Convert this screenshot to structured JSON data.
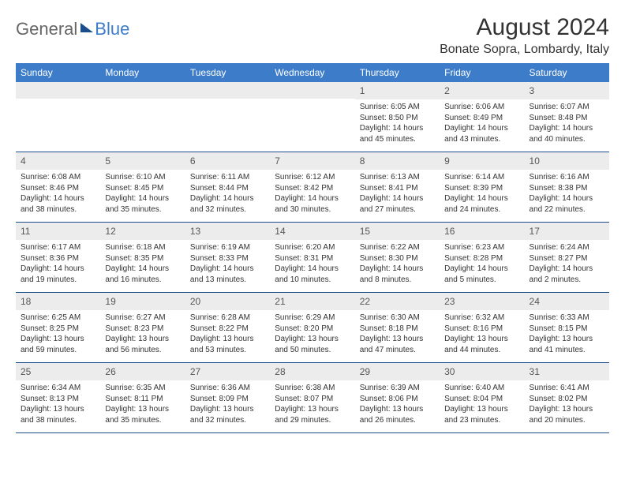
{
  "brand": {
    "part1": "General",
    "part2": "Blue"
  },
  "title": "August 2024",
  "location": "Bonate Sopra, Lombardy, Italy",
  "colors": {
    "header_bg": "#3d7cc9",
    "header_text": "#ffffff",
    "daynum_bg": "#ececec",
    "border": "#1a4e8a",
    "logo_blue": "#3d7cc9"
  },
  "daysOfWeek": [
    "Sunday",
    "Monday",
    "Tuesday",
    "Wednesday",
    "Thursday",
    "Friday",
    "Saturday"
  ],
  "weeks": [
    [
      {
        "num": "",
        "sunrise": "",
        "sunset": "",
        "daylight": ""
      },
      {
        "num": "",
        "sunrise": "",
        "sunset": "",
        "daylight": ""
      },
      {
        "num": "",
        "sunrise": "",
        "sunset": "",
        "daylight": ""
      },
      {
        "num": "",
        "sunrise": "",
        "sunset": "",
        "daylight": ""
      },
      {
        "num": "1",
        "sunrise": "Sunrise: 6:05 AM",
        "sunset": "Sunset: 8:50 PM",
        "daylight": "Daylight: 14 hours and 45 minutes."
      },
      {
        "num": "2",
        "sunrise": "Sunrise: 6:06 AM",
        "sunset": "Sunset: 8:49 PM",
        "daylight": "Daylight: 14 hours and 43 minutes."
      },
      {
        "num": "3",
        "sunrise": "Sunrise: 6:07 AM",
        "sunset": "Sunset: 8:48 PM",
        "daylight": "Daylight: 14 hours and 40 minutes."
      }
    ],
    [
      {
        "num": "4",
        "sunrise": "Sunrise: 6:08 AM",
        "sunset": "Sunset: 8:46 PM",
        "daylight": "Daylight: 14 hours and 38 minutes."
      },
      {
        "num": "5",
        "sunrise": "Sunrise: 6:10 AM",
        "sunset": "Sunset: 8:45 PM",
        "daylight": "Daylight: 14 hours and 35 minutes."
      },
      {
        "num": "6",
        "sunrise": "Sunrise: 6:11 AM",
        "sunset": "Sunset: 8:44 PM",
        "daylight": "Daylight: 14 hours and 32 minutes."
      },
      {
        "num": "7",
        "sunrise": "Sunrise: 6:12 AM",
        "sunset": "Sunset: 8:42 PM",
        "daylight": "Daylight: 14 hours and 30 minutes."
      },
      {
        "num": "8",
        "sunrise": "Sunrise: 6:13 AM",
        "sunset": "Sunset: 8:41 PM",
        "daylight": "Daylight: 14 hours and 27 minutes."
      },
      {
        "num": "9",
        "sunrise": "Sunrise: 6:14 AM",
        "sunset": "Sunset: 8:39 PM",
        "daylight": "Daylight: 14 hours and 24 minutes."
      },
      {
        "num": "10",
        "sunrise": "Sunrise: 6:16 AM",
        "sunset": "Sunset: 8:38 PM",
        "daylight": "Daylight: 14 hours and 22 minutes."
      }
    ],
    [
      {
        "num": "11",
        "sunrise": "Sunrise: 6:17 AM",
        "sunset": "Sunset: 8:36 PM",
        "daylight": "Daylight: 14 hours and 19 minutes."
      },
      {
        "num": "12",
        "sunrise": "Sunrise: 6:18 AM",
        "sunset": "Sunset: 8:35 PM",
        "daylight": "Daylight: 14 hours and 16 minutes."
      },
      {
        "num": "13",
        "sunrise": "Sunrise: 6:19 AM",
        "sunset": "Sunset: 8:33 PM",
        "daylight": "Daylight: 14 hours and 13 minutes."
      },
      {
        "num": "14",
        "sunrise": "Sunrise: 6:20 AM",
        "sunset": "Sunset: 8:31 PM",
        "daylight": "Daylight: 14 hours and 10 minutes."
      },
      {
        "num": "15",
        "sunrise": "Sunrise: 6:22 AM",
        "sunset": "Sunset: 8:30 PM",
        "daylight": "Daylight: 14 hours and 8 minutes."
      },
      {
        "num": "16",
        "sunrise": "Sunrise: 6:23 AM",
        "sunset": "Sunset: 8:28 PM",
        "daylight": "Daylight: 14 hours and 5 minutes."
      },
      {
        "num": "17",
        "sunrise": "Sunrise: 6:24 AM",
        "sunset": "Sunset: 8:27 PM",
        "daylight": "Daylight: 14 hours and 2 minutes."
      }
    ],
    [
      {
        "num": "18",
        "sunrise": "Sunrise: 6:25 AM",
        "sunset": "Sunset: 8:25 PM",
        "daylight": "Daylight: 13 hours and 59 minutes."
      },
      {
        "num": "19",
        "sunrise": "Sunrise: 6:27 AM",
        "sunset": "Sunset: 8:23 PM",
        "daylight": "Daylight: 13 hours and 56 minutes."
      },
      {
        "num": "20",
        "sunrise": "Sunrise: 6:28 AM",
        "sunset": "Sunset: 8:22 PM",
        "daylight": "Daylight: 13 hours and 53 minutes."
      },
      {
        "num": "21",
        "sunrise": "Sunrise: 6:29 AM",
        "sunset": "Sunset: 8:20 PM",
        "daylight": "Daylight: 13 hours and 50 minutes."
      },
      {
        "num": "22",
        "sunrise": "Sunrise: 6:30 AM",
        "sunset": "Sunset: 8:18 PM",
        "daylight": "Daylight: 13 hours and 47 minutes."
      },
      {
        "num": "23",
        "sunrise": "Sunrise: 6:32 AM",
        "sunset": "Sunset: 8:16 PM",
        "daylight": "Daylight: 13 hours and 44 minutes."
      },
      {
        "num": "24",
        "sunrise": "Sunrise: 6:33 AM",
        "sunset": "Sunset: 8:15 PM",
        "daylight": "Daylight: 13 hours and 41 minutes."
      }
    ],
    [
      {
        "num": "25",
        "sunrise": "Sunrise: 6:34 AM",
        "sunset": "Sunset: 8:13 PM",
        "daylight": "Daylight: 13 hours and 38 minutes."
      },
      {
        "num": "26",
        "sunrise": "Sunrise: 6:35 AM",
        "sunset": "Sunset: 8:11 PM",
        "daylight": "Daylight: 13 hours and 35 minutes."
      },
      {
        "num": "27",
        "sunrise": "Sunrise: 6:36 AM",
        "sunset": "Sunset: 8:09 PM",
        "daylight": "Daylight: 13 hours and 32 minutes."
      },
      {
        "num": "28",
        "sunrise": "Sunrise: 6:38 AM",
        "sunset": "Sunset: 8:07 PM",
        "daylight": "Daylight: 13 hours and 29 minutes."
      },
      {
        "num": "29",
        "sunrise": "Sunrise: 6:39 AM",
        "sunset": "Sunset: 8:06 PM",
        "daylight": "Daylight: 13 hours and 26 minutes."
      },
      {
        "num": "30",
        "sunrise": "Sunrise: 6:40 AM",
        "sunset": "Sunset: 8:04 PM",
        "daylight": "Daylight: 13 hours and 23 minutes."
      },
      {
        "num": "31",
        "sunrise": "Sunrise: 6:41 AM",
        "sunset": "Sunset: 8:02 PM",
        "daylight": "Daylight: 13 hours and 20 minutes."
      }
    ]
  ]
}
